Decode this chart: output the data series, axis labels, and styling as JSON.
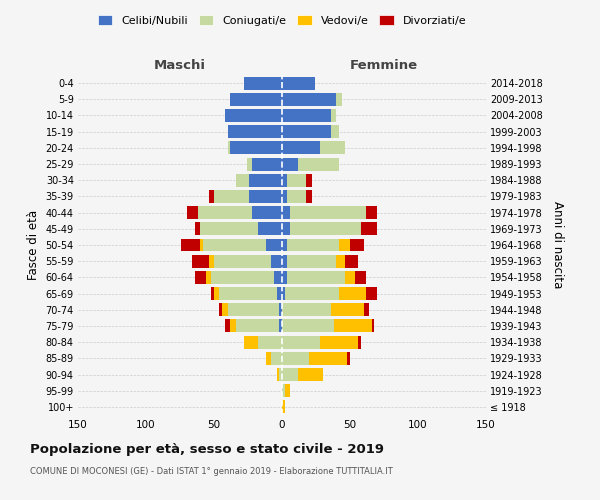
{
  "age_groups": [
    "100+",
    "95-99",
    "90-94",
    "85-89",
    "80-84",
    "75-79",
    "70-74",
    "65-69",
    "60-64",
    "55-59",
    "50-54",
    "45-49",
    "40-44",
    "35-39",
    "30-34",
    "25-29",
    "20-24",
    "15-19",
    "10-14",
    "5-9",
    "0-4"
  ],
  "birth_years": [
    "≤ 1918",
    "1919-1923",
    "1924-1928",
    "1929-1933",
    "1934-1938",
    "1939-1943",
    "1944-1948",
    "1949-1953",
    "1954-1958",
    "1959-1963",
    "1964-1968",
    "1969-1973",
    "1974-1978",
    "1979-1983",
    "1984-1988",
    "1989-1993",
    "1994-1998",
    "1999-2003",
    "2004-2008",
    "2009-2013",
    "2014-2018"
  ],
  "males": {
    "celibe": [
      0,
      0,
      0,
      0,
      0,
      2,
      2,
      4,
      6,
      8,
      12,
      18,
      22,
      24,
      24,
      22,
      38,
      40,
      42,
      38,
      28
    ],
    "coniugato": [
      0,
      0,
      2,
      8,
      18,
      32,
      38,
      42,
      46,
      42,
      46,
      42,
      40,
      26,
      10,
      4,
      2,
      0,
      0,
      0,
      0
    ],
    "vedovo": [
      0,
      0,
      2,
      4,
      10,
      4,
      4,
      4,
      4,
      4,
      2,
      0,
      0,
      0,
      0,
      0,
      0,
      0,
      0,
      0,
      0
    ],
    "divorziato": [
      0,
      0,
      0,
      0,
      0,
      4,
      2,
      2,
      8,
      12,
      14,
      4,
      8,
      4,
      0,
      0,
      0,
      0,
      0,
      0,
      0
    ]
  },
  "females": {
    "nubile": [
      0,
      0,
      0,
      0,
      0,
      0,
      0,
      2,
      4,
      4,
      4,
      6,
      6,
      4,
      4,
      12,
      28,
      36,
      36,
      40,
      24
    ],
    "coniugata": [
      0,
      2,
      12,
      20,
      28,
      38,
      36,
      40,
      42,
      36,
      38,
      52,
      56,
      14,
      14,
      30,
      18,
      6,
      4,
      4,
      0
    ],
    "vedova": [
      2,
      4,
      18,
      28,
      28,
      28,
      24,
      20,
      8,
      6,
      8,
      0,
      0,
      0,
      0,
      0,
      0,
      0,
      0,
      0,
      0
    ],
    "divorziata": [
      0,
      0,
      0,
      2,
      2,
      2,
      4,
      8,
      8,
      10,
      10,
      12,
      8,
      4,
      4,
      0,
      0,
      0,
      0,
      0,
      0
    ]
  },
  "colors": {
    "celibe": "#4472c4",
    "coniugato": "#c5d9a0",
    "vedovo": "#ffc000",
    "divorziato": "#c00000"
  },
  "xlim": 150,
  "title": "Popolazione per età, sesso e stato civile - 2019",
  "subtitle": "COMUNE DI MOCONESI (GE) - Dati ISTAT 1° gennaio 2019 - Elaborazione TUTTITALIA.IT",
  "ylabel_left": "Fasce di età",
  "ylabel_right": "Anni di nascita",
  "xlabel_left": "Maschi",
  "xlabel_right": "Femmine",
  "legend_labels": [
    "Celibi/Nubili",
    "Coniugati/e",
    "Vedovi/e",
    "Divorziati/e"
  ],
  "background_color": "#f5f5f5"
}
